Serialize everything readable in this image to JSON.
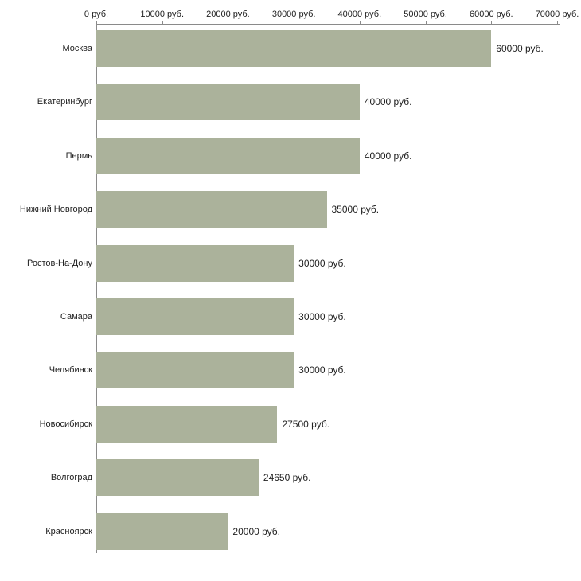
{
  "chart_data": {
    "type": "bar",
    "orientation": "horizontal",
    "title": "",
    "xlabel": "",
    "ylabel": "",
    "categories": [
      "Москва",
      "Екатеринбург",
      "Пермь",
      "Нижний Новгород",
      "Ростов-На-Дону",
      "Самара",
      "Челябинск",
      "Новосибирск",
      "Волгоград",
      "Красноярск"
    ],
    "values": [
      60000,
      40000,
      40000,
      35000,
      30000,
      30000,
      30000,
      27500,
      24650,
      20000
    ],
    "value_labels": [
      "60000 руб.",
      "40000 руб.",
      "40000 руб.",
      "35000 руб.",
      "30000 руб.",
      "30000 руб.",
      "30000 руб.",
      "27500 руб.",
      "24650 руб.",
      "20000 руб."
    ],
    "x_ticks": [
      0,
      10000,
      20000,
      30000,
      40000,
      50000,
      60000,
      70000
    ],
    "x_tick_labels": [
      "0 руб.",
      "10000 руб.",
      "20000 руб.",
      "30000 руб.",
      "40000 руб.",
      "50000 руб.",
      "60000 руб.",
      "70000 руб."
    ],
    "xlim": [
      0,
      70000
    ],
    "grid": false,
    "legend": false,
    "bar_color": "#abb29b",
    "axis_color": "#8a8a8a",
    "text_color": "#222222",
    "background_color": "#ffffff"
  }
}
